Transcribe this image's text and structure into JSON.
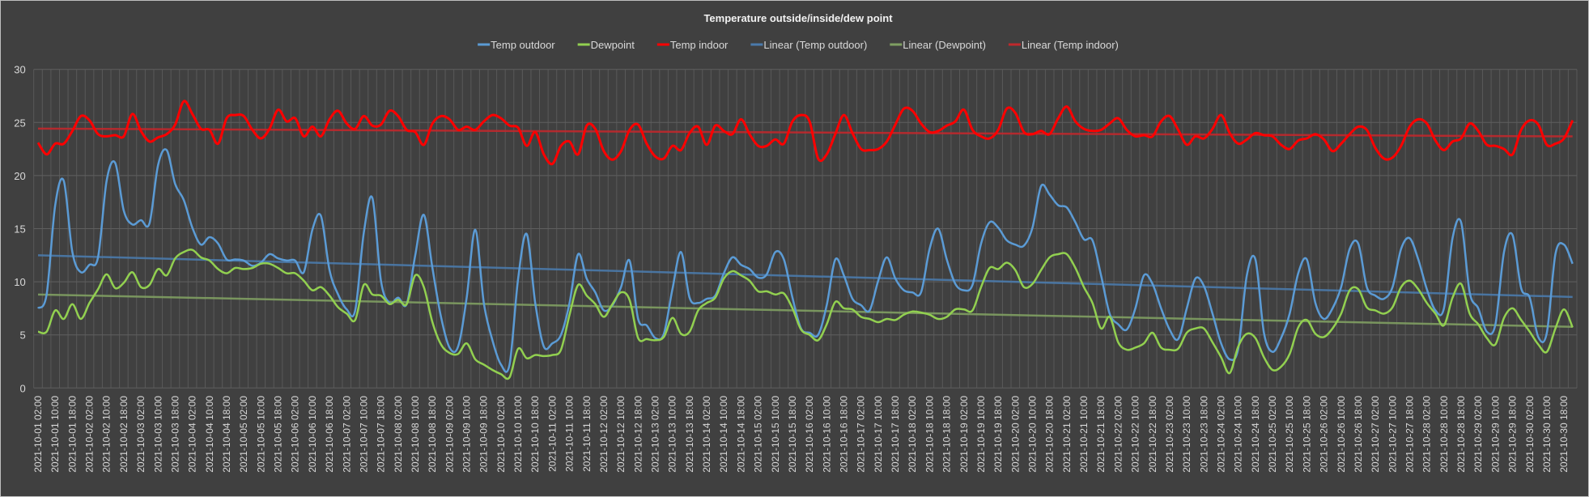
{
  "chart_data": {
    "type": "line",
    "title": "Temperature outside/inside/dew point",
    "xlabel": "",
    "ylabel": "",
    "ylim": [
      0,
      30
    ],
    "y_ticks": [
      "0",
      "5",
      "10",
      "15",
      "20",
      "25",
      "30"
    ],
    "grid": true,
    "legend_position": "top",
    "x_tick_labels": [
      "2021-10-01 02:00",
      "2021-10-01 10:00",
      "2021-10-01 18:00",
      "2021-10-02 02:00",
      "2021-10-02 10:00",
      "2021-10-02 18:00",
      "2021-10-03 02:00",
      "2021-10-03 10:00",
      "2021-10-03 18:00",
      "2021-10-04 02:00",
      "2021-10-04 10:00",
      "2021-10-04 18:00",
      "2021-10-05 02:00",
      "2021-10-05 10:00",
      "2021-10-05 18:00",
      "2021-10-06 02:00",
      "2021-10-06 10:00",
      "2021-10-06 18:00",
      "2021-10-07 02:00",
      "2021-10-07 10:00",
      "2021-10-07 18:00",
      "2021-10-08 02:00",
      "2021-10-08 10:00",
      "2021-10-08 18:00",
      "2021-10-09 02:00",
      "2021-10-09 10:00",
      "2021-10-09 18:00",
      "2021-10-10 02:00",
      "2021-10-10 10:00",
      "2021-10-10 18:00",
      "2021-10-11 02:00",
      "2021-10-11 10:00",
      "2021-10-11 18:00",
      "2021-10-12 02:00",
      "2021-10-12 10:00",
      "2021-10-12 18:00",
      "2021-10-13 02:00",
      "2021-10-13 10:00",
      "2021-10-13 18:00",
      "2021-10-14 02:00",
      "2021-10-14 10:00",
      "2021-10-14 18:00",
      "2021-10-15 02:00",
      "2021-10-15 10:00",
      "2021-10-15 18:00",
      "2021-10-16 02:00",
      "2021-10-16 10:00",
      "2021-10-16 18:00",
      "2021-10-17 02:00",
      "2021-10-17 10:00",
      "2021-10-17 18:00",
      "2021-10-18 02:00",
      "2021-10-18 10:00",
      "2021-10-18 18:00",
      "2021-10-19 02:00",
      "2021-10-19 10:00",
      "2021-10-19 18:00",
      "2021-10-20 02:00",
      "2021-10-20 10:00",
      "2021-10-20 18:00",
      "2021-10-21 02:00",
      "2021-10-21 10:00",
      "2021-10-21 18:00",
      "2021-10-22 02:00",
      "2021-10-22 10:00",
      "2021-10-22 18:00",
      "2021-10-23 02:00",
      "2021-10-23 10:00",
      "2021-10-23 18:00",
      "2021-10-24 02:00",
      "2021-10-24 10:00",
      "2021-10-24 18:00",
      "2021-10-25 02:00",
      "2021-10-25 10:00",
      "2021-10-25 18:00",
      "2021-10-26 02:00",
      "2021-10-26 10:00",
      "2021-10-26 18:00",
      "2021-10-27 02:00",
      "2021-10-27 10:00",
      "2021-10-27 18:00",
      "2021-10-28 02:00",
      "2021-10-28 10:00",
      "2021-10-28 18:00",
      "2021-10-29 02:00",
      "2021-10-29 10:00",
      "2021-10-29 18:00",
      "2021-10-30 02:00",
      "2021-10-30 10:00",
      "2021-10-30 18:00"
    ],
    "series": [
      {
        "name": "Temp outdoor",
        "color": "#5b9bd5",
        "values": [
          7.5,
          8.8,
          17.2,
          19.5,
          12.8,
          10.9,
          11.6,
          12.3,
          19.5,
          21.2,
          16.7,
          15.4,
          15.8,
          15.5,
          21.0,
          22.4,
          19.2,
          17.7,
          15.1,
          13.5,
          14.2,
          13.6,
          12.1,
          12.1,
          12.0,
          11.5,
          11.8,
          12.6,
          12.2,
          12.0,
          12.0,
          10.9,
          14.9,
          16.2,
          11.1,
          8.8,
          7.4,
          7.3,
          14.6,
          17.9,
          10.1,
          8.0,
          8.5,
          7.9,
          12.5,
          16.3,
          11.3,
          6.7,
          3.8,
          3.9,
          8.5,
          14.9,
          8.0,
          4.5,
          2.2,
          2.2,
          10.3,
          14.5,
          8.0,
          3.9,
          4.2,
          5.0,
          8.0,
          12.6,
          10.3,
          9.0,
          7.3,
          7.8,
          9.5,
          12.0,
          6.5,
          5.9,
          4.7,
          5.1,
          9.3,
          12.8,
          8.5,
          8.0,
          8.4,
          8.7,
          10.8,
          12.3,
          11.6,
          11.2,
          10.4,
          10.7,
          12.8,
          12.1,
          8.5,
          5.6,
          5.2,
          5.0,
          7.8,
          12.1,
          10.6,
          8.4,
          7.8,
          7.3,
          10.1,
          12.3,
          10.3,
          9.2,
          9.0,
          9.0,
          13.1,
          15.0,
          12.1,
          9.8,
          9.2,
          9.7,
          13.6,
          15.6,
          15.1,
          13.9,
          13.5,
          13.4,
          15.1,
          19.0,
          18.2,
          17.2,
          17.0,
          15.6,
          14.0,
          13.9,
          10.6,
          7.0,
          6.0,
          5.5,
          7.5,
          10.6,
          9.8,
          7.5,
          5.5,
          4.6,
          7.5,
          10.3,
          9.6,
          7.0,
          4.2,
          2.7,
          3.7,
          10.6,
          12.1,
          5.2,
          3.4,
          4.7,
          7.0,
          10.8,
          12.1,
          8.0,
          6.5,
          7.5,
          9.5,
          13.1,
          13.6,
          9.5,
          8.7,
          8.4,
          9.5,
          13.1,
          14.1,
          12.1,
          9.3,
          7.3,
          7.5,
          14.1,
          15.6,
          9.0,
          7.5,
          5.3,
          6.0,
          12.8,
          14.4,
          9.4,
          8.5,
          4.8,
          5.2,
          12.6,
          13.5,
          11.7
        ]
      },
      {
        "name": "Dewpoint",
        "color": "#92d050",
        "values": [
          5.3,
          5.3,
          7.3,
          6.5,
          7.9,
          6.5,
          8.0,
          9.3,
          10.7,
          9.4,
          9.9,
          10.9,
          9.5,
          9.7,
          11.2,
          10.6,
          12.2,
          12.8,
          13.0,
          12.3,
          12.0,
          11.2,
          10.8,
          11.3,
          11.2,
          11.3,
          11.7,
          11.7,
          11.3,
          10.8,
          10.8,
          10.1,
          9.2,
          9.5,
          8.7,
          7.6,
          7.0,
          6.4,
          9.7,
          8.8,
          8.7,
          7.9,
          8.3,
          7.9,
          10.6,
          9.5,
          6.2,
          4.1,
          3.3,
          3.2,
          4.2,
          2.7,
          2.2,
          1.7,
          1.3,
          1.0,
          3.7,
          2.8,
          3.1,
          3.0,
          3.1,
          3.6,
          6.9,
          9.7,
          8.7,
          7.9,
          6.7,
          7.9,
          9.0,
          8.3,
          4.7,
          4.6,
          4.5,
          4.8,
          6.6,
          5.1,
          5.3,
          7.3,
          8.0,
          8.5,
          10.3,
          11.0,
          10.6,
          10.1,
          9.1,
          9.1,
          8.8,
          8.9,
          7.5,
          5.5,
          5.0,
          4.5,
          6.0,
          8.1,
          7.5,
          7.4,
          6.7,
          6.5,
          6.2,
          6.5,
          6.4,
          6.9,
          7.2,
          7.1,
          6.9,
          6.5,
          6.7,
          7.4,
          7.4,
          7.3,
          9.5,
          11.3,
          11.2,
          11.8,
          11.1,
          9.5,
          9.8,
          11.1,
          12.3,
          12.6,
          12.6,
          11.3,
          9.5,
          8.0,
          5.6,
          6.7,
          4.3,
          3.6,
          3.8,
          4.2,
          5.2,
          3.8,
          3.6,
          3.7,
          5.2,
          5.6,
          5.6,
          4.3,
          2.9,
          1.4,
          3.9,
          5.1,
          4.7,
          2.9,
          1.7,
          2.0,
          3.2,
          5.7,
          6.4,
          5.1,
          4.8,
          5.6,
          7.0,
          9.2,
          9.3,
          7.6,
          7.3,
          7.0,
          7.6,
          9.5,
          10.1,
          9.3,
          8.0,
          7.0,
          5.9,
          8.5,
          9.8,
          7.0,
          6.0,
          4.7,
          4.1,
          6.6,
          7.5,
          6.4,
          5.3,
          4.1,
          3.4,
          5.6,
          7.4,
          5.7
        ]
      },
      {
        "name": "Temp indoor",
        "color": "#ff0000",
        "values": [
          23.1,
          22.0,
          23.0,
          23.0,
          24.2,
          25.6,
          25.2,
          23.9,
          23.7,
          23.8,
          23.7,
          25.8,
          24.2,
          23.2,
          23.6,
          23.9,
          24.8,
          27.0,
          25.8,
          24.4,
          24.3,
          23.0,
          25.4,
          25.7,
          25.6,
          24.3,
          23.5,
          24.4,
          26.2,
          25.1,
          25.4,
          23.7,
          24.6,
          23.7,
          25.3,
          26.1,
          24.9,
          24.4,
          25.6,
          24.7,
          24.8,
          26.1,
          25.6,
          24.3,
          24.1,
          22.9,
          24.9,
          25.6,
          25.3,
          24.3,
          24.6,
          24.3,
          25.1,
          25.7,
          25.4,
          24.7,
          24.5,
          22.8,
          24.1,
          22.0,
          21.1,
          22.8,
          23.2,
          22.0,
          24.7,
          24.4,
          22.3,
          21.5,
          22.3,
          24.3,
          24.8,
          23.0,
          21.8,
          21.6,
          22.8,
          22.4,
          24.0,
          24.6,
          22.9,
          24.7,
          24.2,
          23.9,
          25.3,
          23.9,
          22.8,
          22.8,
          23.4,
          23.0,
          25.1,
          25.7,
          25.1,
          21.6,
          22.0,
          23.9,
          25.7,
          24.0,
          22.5,
          22.4,
          22.5,
          23.2,
          24.8,
          26.3,
          26.1,
          24.9,
          24.1,
          24.2,
          24.7,
          25.1,
          26.2,
          24.3,
          23.7,
          23.5,
          24.3,
          26.3,
          25.9,
          24.1,
          23.9,
          24.2,
          23.9,
          25.4,
          26.5,
          25.1,
          24.4,
          24.2,
          24.3,
          24.9,
          25.4,
          24.3,
          23.7,
          23.8,
          23.7,
          25.1,
          25.6,
          24.3,
          22.9,
          23.7,
          23.5,
          24.4,
          25.7,
          24.0,
          23.0,
          23.4,
          24.0,
          23.8,
          23.7,
          22.9,
          22.5,
          23.3,
          23.5,
          23.9,
          23.4,
          22.3,
          23.0,
          23.9,
          24.6,
          24.3,
          22.6,
          21.6,
          21.7,
          22.8,
          24.6,
          25.3,
          24.9,
          23.3,
          22.4,
          23.2,
          23.5,
          24.9,
          24.2,
          22.9,
          22.8,
          22.5,
          22.0,
          24.3,
          25.2,
          24.8,
          22.9,
          23.0,
          23.5,
          25.2
        ]
      }
    ],
    "trendlines": [
      {
        "name": "Linear (Temp outdoor)",
        "of": 0,
        "color": "#4a7aab"
      },
      {
        "name": "Linear (Dewpoint)",
        "of": 1,
        "color": "#7f9f62"
      },
      {
        "name": "Linear (Temp indoor)",
        "of": 2,
        "color": "#c0282c"
      }
    ]
  }
}
